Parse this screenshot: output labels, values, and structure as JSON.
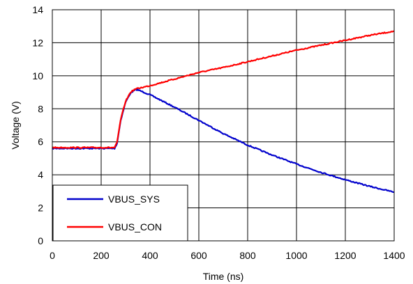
{
  "chart_data": {
    "type": "line",
    "xlabel": "Time (ns)",
    "ylabel": "Voltage (V)",
    "xlim": [
      0,
      1400
    ],
    "ylim": [
      0,
      14
    ],
    "xticks": [
      0,
      200,
      400,
      600,
      800,
      1000,
      1200,
      1400
    ],
    "yticks": [
      0,
      2,
      4,
      6,
      8,
      10,
      12,
      14
    ],
    "grid": true,
    "legend_position": "bottom-left",
    "series": [
      {
        "name": "VBUS_SYS",
        "color": "#0000cc",
        "x": [
          0,
          100,
          200,
          255,
          265,
          280,
          300,
          320,
          340,
          350,
          400,
          500,
          600,
          700,
          800,
          900,
          1000,
          1100,
          1200,
          1300,
          1400
        ],
        "y": [
          5.6,
          5.6,
          5.6,
          5.6,
          5.9,
          7.3,
          8.4,
          8.95,
          9.15,
          9.15,
          8.85,
          8.1,
          7.3,
          6.5,
          5.8,
          5.2,
          4.65,
          4.15,
          3.7,
          3.3,
          2.95
        ]
      },
      {
        "name": "VBUS_CON",
        "color": "#ff0000",
        "x": [
          0,
          100,
          200,
          255,
          265,
          280,
          300,
          320,
          340,
          400,
          500,
          600,
          700,
          800,
          900,
          1000,
          1100,
          1200,
          1300,
          1400
        ],
        "y": [
          5.65,
          5.65,
          5.65,
          5.65,
          5.95,
          7.35,
          8.45,
          9.0,
          9.2,
          9.4,
          9.8,
          10.2,
          10.5,
          10.85,
          11.2,
          11.55,
          11.85,
          12.15,
          12.45,
          12.7
        ]
      }
    ]
  }
}
